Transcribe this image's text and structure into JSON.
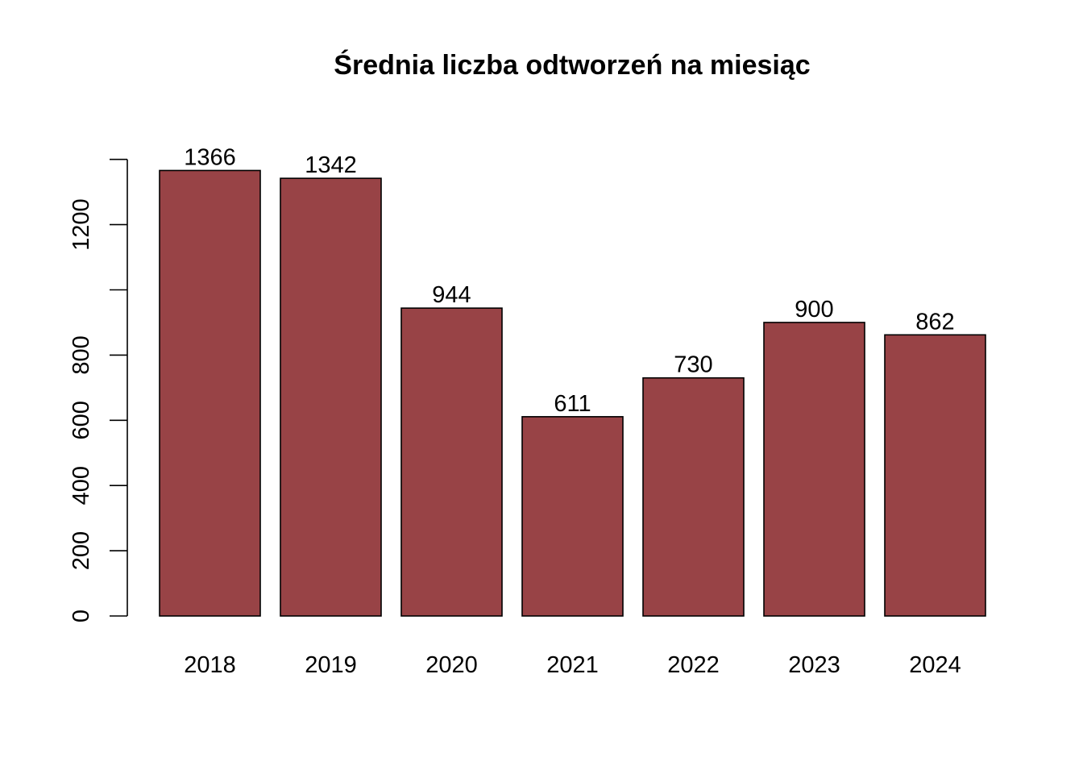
{
  "chart_data": {
    "type": "bar",
    "title": "Średnia liczba odtworzeń na miesiąc",
    "xlabel": "",
    "ylabel": "",
    "categories": [
      "2018",
      "2019",
      "2020",
      "2021",
      "2022",
      "2023",
      "2024"
    ],
    "values": [
      1366,
      1342,
      944,
      611,
      730,
      900,
      862
    ],
    "data_labels": [
      "1366",
      "1342",
      "944",
      "611",
      "730",
      "900",
      "862"
    ],
    "y_ticks": [
      0,
      200,
      400,
      600,
      800,
      1000,
      1200,
      1400
    ],
    "y_tick_labels": [
      "0",
      "200",
      "400",
      "600",
      "800",
      "",
      "1200",
      ""
    ],
    "ylim": [
      0,
      1400
    ],
    "bar_color": "#984346",
    "grid": false,
    "legend": "none"
  }
}
